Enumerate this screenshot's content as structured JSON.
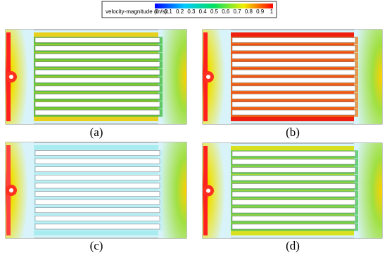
{
  "legend": {
    "title": "velocity-magnitude (m/s):",
    "ticks": [
      "0",
      "0.1",
      "0.2",
      "0.3",
      "0.4",
      "0.5",
      "0.6",
      "0.7",
      "0.8",
      "0.9",
      "1"
    ]
  },
  "panels": [
    {
      "label": "(a)"
    },
    {
      "label": "(b)"
    },
    {
      "label": "(c)"
    },
    {
      "label": "(d)"
    }
  ]
}
